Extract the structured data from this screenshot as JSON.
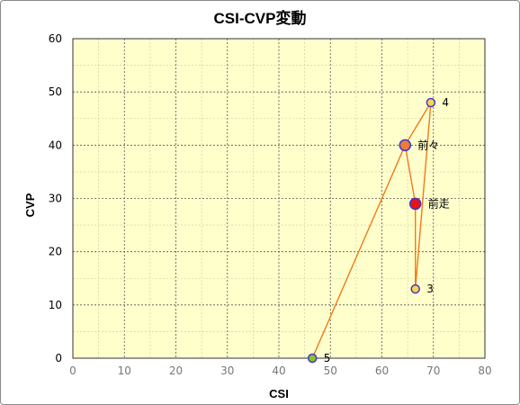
{
  "chart_data": {
    "type": "scatter",
    "title": "CSI-CVP変動",
    "xlabel": "CSI",
    "ylabel": "CVP",
    "xlim": [
      0,
      80
    ],
    "ylim": [
      0,
      60
    ],
    "x_ticks": [
      "0",
      "10",
      "20",
      "30",
      "40",
      "50",
      "60",
      "70",
      "80"
    ],
    "y_ticks": [
      "0",
      "10",
      "20",
      "30",
      "40",
      "50",
      "60"
    ],
    "grid": true,
    "line_color": "#f07a1a",
    "plot_background": "#ffffcc",
    "line_order": [
      "5",
      "前々",
      "前走",
      "3",
      "4",
      "前々"
    ],
    "points": [
      {
        "label": "4",
        "x": 69.5,
        "y": 48,
        "fill": "#ffd24a",
        "stroke": "#3a3ad0",
        "size": "small"
      },
      {
        "label": "前々",
        "x": 64.5,
        "y": 40,
        "fill": "#f07a3a",
        "stroke": "#3a3ad0",
        "size": "large"
      },
      {
        "label": "前走",
        "x": 66.5,
        "y": 29,
        "fill": "#ee1111",
        "stroke": "#3a3ad0",
        "size": "large"
      },
      {
        "label": "3",
        "x": 66.5,
        "y": 13,
        "fill": "#ffd24a",
        "stroke": "#3a3ad0",
        "size": "small"
      },
      {
        "label": "5",
        "x": 46.5,
        "y": 0,
        "fill": "#8fbf2a",
        "stroke": "#3a3ad0",
        "size": "small"
      }
    ]
  }
}
